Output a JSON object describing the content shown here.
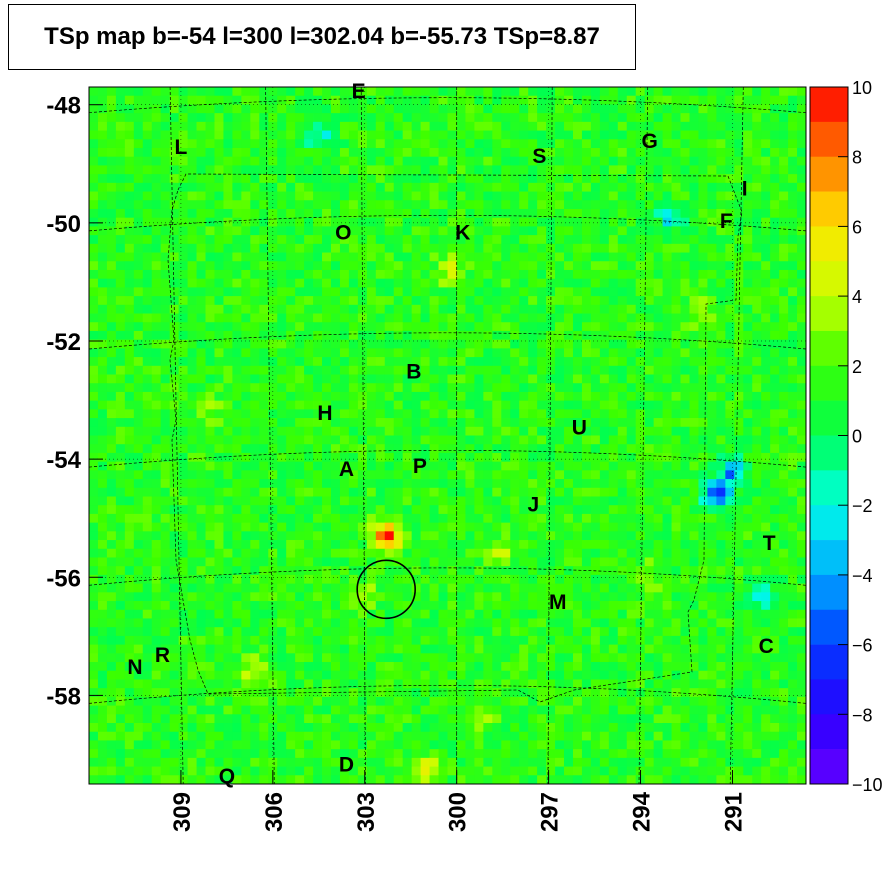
{
  "chart_data": {
    "type": "heatmap",
    "title": "TSp map b=-54 l=300 l=302.04 b=-55.73 TSp=8.87",
    "xlabel": "",
    "ylabel": "",
    "x_ticks": [
      "309",
      "306",
      "303",
      "300",
      "297",
      "294",
      "291"
    ],
    "x_tick_values": [
      309,
      306,
      303,
      300,
      297,
      294,
      291
    ],
    "y_ticks": [
      "-48",
      "-50",
      "-52",
      "-54",
      "-56",
      "-58"
    ],
    "y_tick_values": [
      -48,
      -50,
      -52,
      -54,
      -56,
      -58
    ],
    "xlim": [
      312,
      288.6
    ],
    "ylim": [
      -59.5,
      -47.7
    ],
    "z_range": [
      -10,
      10
    ],
    "colorbar_ticks": [
      "10",
      "8",
      "6",
      "4",
      "2",
      "0",
      "−2",
      "−4",
      "−6",
      "−8",
      "−10"
    ],
    "colorbar_tick_values": [
      10,
      8,
      6,
      4,
      2,
      0,
      -2,
      -4,
      -6,
      -8,
      -10
    ],
    "background_value": 1.3,
    "hotspots": [
      {
        "l": 302.3,
        "b": -55.3,
        "value": 9.0
      },
      {
        "l": 301.0,
        "b": -59.3,
        "value": 5.5
      },
      {
        "l": 306.5,
        "b": -57.6,
        "value": 4.5
      },
      {
        "l": 300.2,
        "b": -50.8,
        "value": 4.5
      },
      {
        "l": 298.6,
        "b": -55.6,
        "value": 4.0
      },
      {
        "l": 303.0,
        "b": -56.3,
        "value": 3.5
      },
      {
        "l": 299.2,
        "b": -58.3,
        "value": 3.5
      },
      {
        "l": 293.8,
        "b": -56.0,
        "value": 3.5
      },
      {
        "l": 292.0,
        "b": -51.5,
        "value": 3.5
      },
      {
        "l": 308.0,
        "b": -53.2,
        "value": 3.0
      }
    ],
    "coldspots": [
      {
        "l": 291.5,
        "b": -54.6,
        "value": -6.0
      },
      {
        "l": 291.0,
        "b": -54.2,
        "value": -4.5
      },
      {
        "l": 293.0,
        "b": -49.9,
        "value": -2.5
      },
      {
        "l": 290.0,
        "b": -56.3,
        "value": -2.5
      },
      {
        "l": 304.5,
        "b": -48.5,
        "value": -2.0
      }
    ],
    "source_circle": {
      "l": 302.04,
      "b": -55.73
    },
    "labels": [
      {
        "text": "E",
        "l": 303.2,
        "b": -47.75
      },
      {
        "text": "L",
        "l": 309.0,
        "b": -48.7
      },
      {
        "text": "S",
        "l": 297.3,
        "b": -48.85
      },
      {
        "text": "G",
        "l": 293.7,
        "b": -48.6
      },
      {
        "text": "I",
        "l": 290.6,
        "b": -49.4
      },
      {
        "text": "F",
        "l": 291.2,
        "b": -49.95
      },
      {
        "text": "O",
        "l": 303.7,
        "b": -50.15
      },
      {
        "text": "K",
        "l": 299.8,
        "b": -50.15
      },
      {
        "text": "B",
        "l": 301.4,
        "b": -52.5
      },
      {
        "text": "H",
        "l": 304.3,
        "b": -53.2
      },
      {
        "text": "U",
        "l": 296.0,
        "b": -53.45
      },
      {
        "text": "A",
        "l": 303.6,
        "b": -54.15
      },
      {
        "text": "P",
        "l": 301.2,
        "b": -54.1
      },
      {
        "text": "J",
        "l": 297.5,
        "b": -54.75
      },
      {
        "text": "T",
        "l": 289.8,
        "b": -55.4
      },
      {
        "text": "M",
        "l": 296.7,
        "b": -56.4
      },
      {
        "text": "C",
        "l": 289.9,
        "b": -57.15
      },
      {
        "text": "R",
        "l": 309.6,
        "b": -57.3
      },
      {
        "text": "N",
        "l": 310.5,
        "b": -57.5
      },
      {
        "text": "D",
        "l": 303.6,
        "b": -59.15
      },
      {
        "text": "Q",
        "l": 307.5,
        "b": -59.35
      }
    ]
  }
}
